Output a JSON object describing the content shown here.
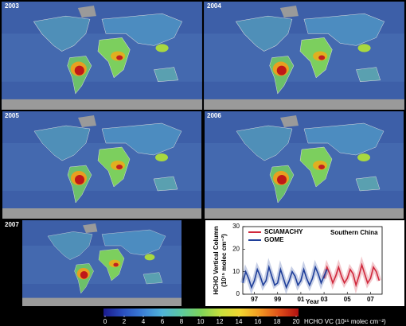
{
  "panels": [
    {
      "year": "2003"
    },
    {
      "year": "2004"
    },
    {
      "year": "2005"
    },
    {
      "year": "2006"
    },
    {
      "year": "2007"
    }
  ],
  "colorbar": {
    "label": "HCHO VC (10¹⁵ molec cm⁻²)",
    "lim": [
      0,
      20
    ],
    "ticks": [
      0,
      2,
      4,
      6,
      8,
      10,
      12,
      14,
      16,
      18,
      20
    ],
    "colors": [
      "#1a1a8c",
      "#2a4fbf",
      "#3b7fd6",
      "#4fb3d9",
      "#5cc9a0",
      "#7ed35a",
      "#c8e03c",
      "#f2d630",
      "#f29a22",
      "#e0501a",
      "#b01010"
    ]
  },
  "chart_data": {
    "type": "line",
    "annotation": "Southern China",
    "xlabel": "Year",
    "ylabel": [
      "HCHO Vertical Column",
      "(10¹⁵ molec cm⁻²)"
    ],
    "xlim": [
      1996,
      2008
    ],
    "ylim": [
      0,
      30
    ],
    "yticks": [
      0,
      10,
      20,
      30
    ],
    "xticks": [
      {
        "value": 1997,
        "label": "97"
      },
      {
        "value": 1999,
        "label": "99"
      },
      {
        "value": 2001,
        "label": "01"
      },
      {
        "value": 2003,
        "label": "03"
      },
      {
        "value": 2005,
        "label": "05"
      },
      {
        "value": 2007,
        "label": "07"
      }
    ],
    "series": [
      {
        "name": "SCIAMACHY",
        "color": "#d0283c",
        "x": [
          2003.0,
          2003.25,
          2003.5,
          2003.75,
          2004.0,
          2004.25,
          2004.5,
          2004.75,
          2005.0,
          2005.25,
          2005.5,
          2005.75,
          2006.0,
          2006.25,
          2006.5,
          2006.75,
          2007.0,
          2007.25,
          2007.5,
          2007.75
        ],
        "values": [
          7,
          12,
          9,
          5,
          8,
          12,
          8,
          5,
          7,
          11,
          9,
          4,
          8,
          13,
          9,
          5,
          7,
          12,
          10,
          6
        ]
      },
      {
        "name": "GOME",
        "color": "#1f3f9a",
        "x": [
          1996.0,
          1996.25,
          1996.5,
          1996.75,
          1997.0,
          1997.25,
          1997.5,
          1997.75,
          1998.0,
          1998.25,
          1998.5,
          1998.75,
          1999.0,
          1999.25,
          1999.5,
          1999.75,
          2000.0,
          2000.25,
          2000.5,
          2000.75,
          2001.0,
          2001.25,
          2001.5,
          2001.75,
          2002.0,
          2002.25,
          2002.5,
          2002.75,
          2003.0,
          2003.25
        ],
        "values": [
          5,
          10,
          7,
          3,
          6,
          11,
          8,
          4,
          6,
          12,
          8,
          4,
          5,
          11,
          7,
          3,
          6,
          10,
          8,
          4,
          6,
          11,
          7,
          4,
          7,
          12,
          9,
          5,
          8,
          11
        ]
      }
    ]
  }
}
